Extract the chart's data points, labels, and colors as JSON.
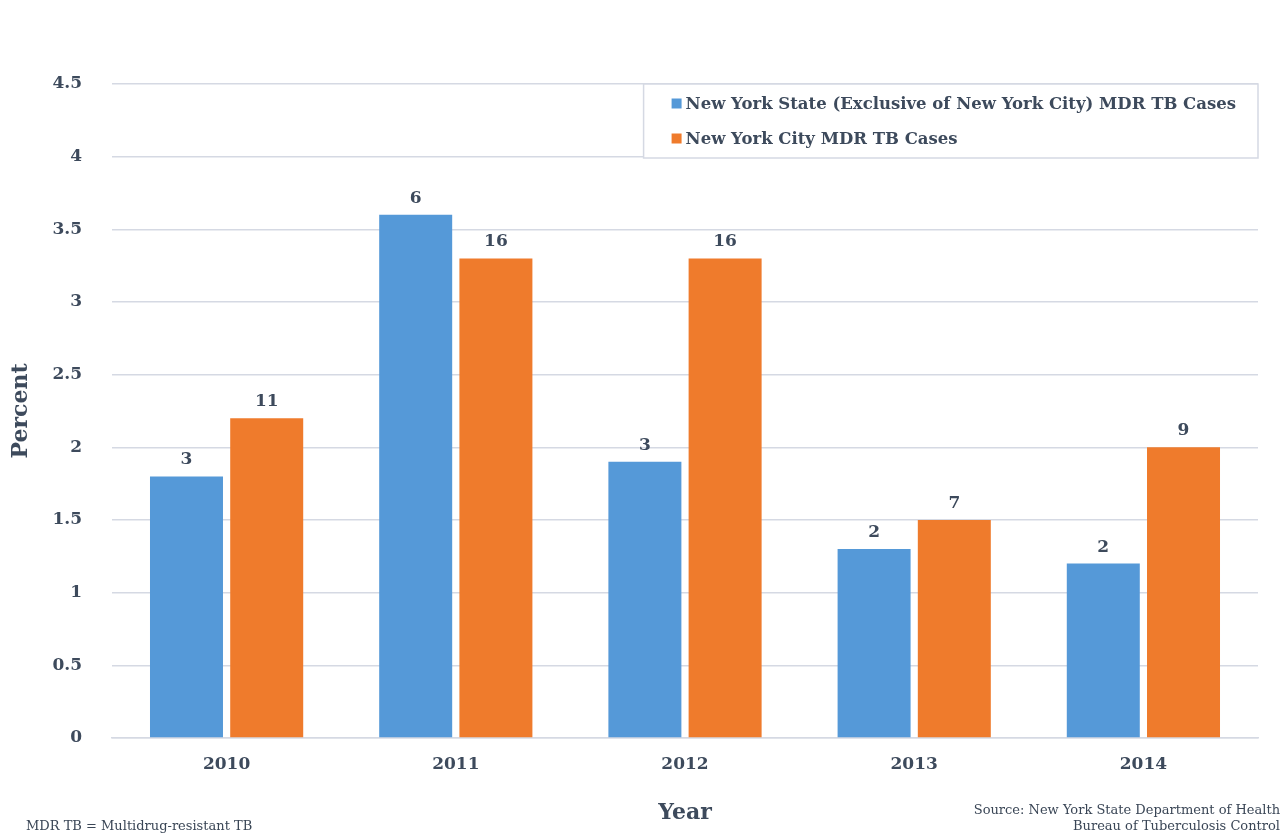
{
  "chart_data": {
    "type": "bar",
    "xlabel": "Year",
    "ylabel": "Percent",
    "categories": [
      "2010",
      "2011",
      "2012",
      "2013",
      "2014"
    ],
    "series": [
      {
        "name": "New York State (Exclusive of New York City) MDR TB Cases",
        "color": "#5599d8",
        "values": [
          1.8,
          3.6,
          1.9,
          1.3,
          1.2
        ]
      },
      {
        "name": "New York City MDR TB Cases",
        "color": "#ef7b2c",
        "values": [
          2.2,
          3.3,
          3.3,
          1.5,
          2.0
        ]
      }
    ],
    "ylim": [
      0,
      4.5
    ],
    "yticks": [
      0,
      0.5,
      1,
      1.5,
      2,
      2.5,
      3,
      3.5,
      4,
      4.5
    ],
    "grid": "y",
    "legend": "top right",
    "annotations": [
      {
        "text": "3",
        "x": "2010",
        "y": 1.8
      },
      {
        "text": "6",
        "x": "2011",
        "y": 3.6
      },
      {
        "text": "3",
        "x": "2012",
        "y": 1.9
      },
      {
        "text": "2",
        "x": "2013",
        "y": 1.3
      },
      {
        "text": "2",
        "x": "2014",
        "y": 1.2
      },
      {
        "text": "11",
        "x": "2010",
        "y": 2.2
      },
      {
        "text": "16",
        "x": "2011",
        "y": 3.3
      },
      {
        "text": "16",
        "x": "2012",
        "y": 3.3
      },
      {
        "text": "7",
        "x": "2013",
        "y": 1.5
      },
      {
        "text": "9",
        "x": "2014",
        "y": 2.0
      },
      "MDR TB = Multidrug-resistant TB",
      "Source: New York State Department of Health\nBureau of Tuberculosis Control"
    ]
  }
}
